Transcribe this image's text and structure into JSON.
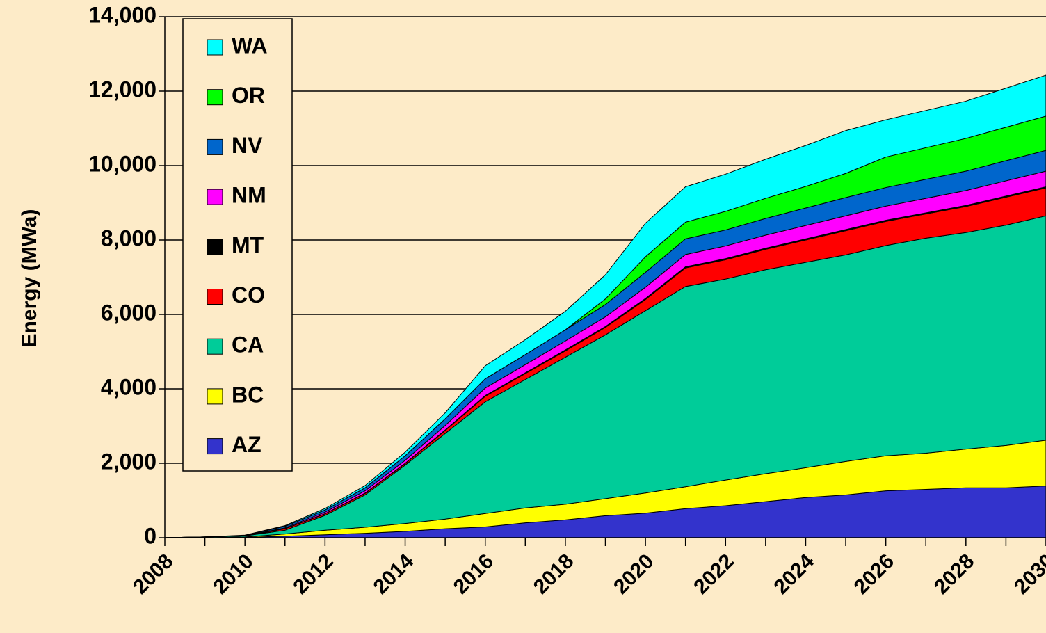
{
  "chart_data": {
    "type": "stacked-area",
    "y_label": "Energy (MWa)",
    "x": [
      2008,
      2009,
      2010,
      2011,
      2012,
      2013,
      2014,
      2015,
      2016,
      2017,
      2018,
      2019,
      2020,
      2021,
      2022,
      2023,
      2024,
      2025,
      2026,
      2027,
      2028,
      2029,
      2030
    ],
    "xlim": [
      2008,
      2030
    ],
    "xticks": [
      2008,
      2010,
      2012,
      2014,
      2016,
      2018,
      2020,
      2022,
      2024,
      2026,
      2028,
      2030
    ],
    "ylim": [
      0,
      14000
    ],
    "yticks": [
      0,
      {
        "value": 2000,
        "label": "2,000"
      },
      {
        "value": 4000,
        "label": "4,000"
      },
      {
        "value": 6000,
        "label": "6,000"
      },
      {
        "value": 8000,
        "label": "8,000"
      },
      {
        "value": 10000,
        "label": "10,000"
      },
      {
        "value": 12000,
        "label": "12,000"
      },
      {
        "value": 14000,
        "label": "14,000"
      }
    ],
    "grid": true,
    "legend": "upper left",
    "series": [
      {
        "name": "AZ",
        "color": "#3333cc",
        "values": [
          0,
          0,
          10,
          40,
          80,
          120,
          170,
          240,
          290,
          400,
          480,
          590,
          660,
          780,
          860,
          970,
          1080,
          1150,
          1260,
          1300,
          1340,
          1340,
          1390
        ]
      },
      {
        "name": "BC",
        "color": "#ffff00",
        "values": [
          0,
          0,
          10,
          60,
          120,
          160,
          210,
          260,
          360,
          400,
          420,
          460,
          540,
          590,
          690,
          750,
          800,
          900,
          940,
          970,
          1040,
          1140,
          1230
        ]
      },
      {
        "name": "CA",
        "color": "#00cc99",
        "values": [
          0,
          20,
          30,
          100,
          400,
          870,
          1570,
          2300,
          3000,
          3450,
          3950,
          4400,
          4900,
          5380,
          5400,
          5480,
          5520,
          5550,
          5650,
          5780,
          5820,
          5920,
          6030
        ]
      },
      {
        "name": "CO",
        "color": "#ff0000",
        "values": [
          0,
          0,
          0,
          40,
          40,
          40,
          40,
          80,
          150,
          160,
          170,
          200,
          300,
          500,
          520,
          550,
          600,
          650,
          650,
          650,
          700,
          750,
          750
        ]
      },
      {
        "name": "MT",
        "color": "#000000",
        "values": [
          0,
          0,
          0,
          5,
          5,
          10,
          10,
          15,
          20,
          20,
          25,
          25,
          30,
          30,
          30,
          30,
          30,
          30,
          30,
          30,
          30,
          30,
          30
        ]
      },
      {
        "name": "NM",
        "color": "#ff00ff",
        "values": [
          0,
          0,
          0,
          20,
          40,
          60,
          80,
          120,
          200,
          220,
          240,
          260,
          300,
          330,
          340,
          350,
          360,
          370,
          380,
          390,
          400,
          410,
          420
        ]
      },
      {
        "name": "NV",
        "color": "#0066cc",
        "values": [
          0,
          0,
          10,
          40,
          60,
          80,
          120,
          180,
          250,
          270,
          300,
          330,
          400,
          420,
          430,
          450,
          470,
          490,
          500,
          510,
          520,
          540,
          560
        ]
      },
      {
        "name": "OR",
        "color": "#00ff00",
        "values": [
          0,
          0,
          0,
          0,
          0,
          0,
          0,
          0,
          0,
          0,
          0,
          150,
          420,
          450,
          500,
          540,
          580,
          650,
          820,
          850,
          880,
          900,
          920
        ]
      },
      {
        "name": "WA",
        "color": "#00ffff",
        "values": [
          0,
          0,
          10,
          20,
          40,
          60,
          100,
          160,
          350,
          400,
          500,
          650,
          900,
          950,
          1000,
          1050,
          1100,
          1150,
          1000,
          1000,
          1000,
          1050,
          1100
        ]
      }
    ]
  }
}
